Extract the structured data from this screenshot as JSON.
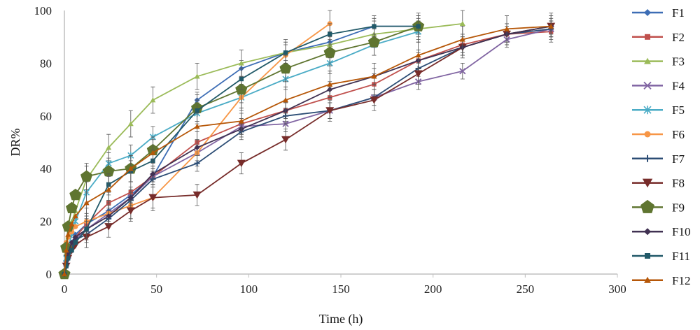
{
  "chart_data": {
    "type": "line",
    "title": "",
    "xlabel": "Time (h)",
    "ylabel": "DR%",
    "xlim": [
      0,
      300
    ],
    "ylim": [
      0,
      100
    ],
    "xticks": [
      "0",
      "50",
      "100",
      "150",
      "200",
      "250",
      "300"
    ],
    "yticks": [
      "0",
      "20",
      "40",
      "60",
      "80",
      "100"
    ],
    "grid": false,
    "legend_position": "right",
    "x": [
      0,
      1,
      2,
      4,
      6,
      12,
      24,
      36,
      48,
      72,
      96,
      120,
      144,
      168,
      192,
      216,
      240,
      264
    ],
    "series": [
      {
        "name": "F1",
        "color": "#3d6db5",
        "marker": "diamond",
        "values": [
          0,
          5,
          8,
          12,
          15,
          19,
          24,
          30,
          37,
          66,
          78,
          84,
          88,
          94,
          94,
          null,
          null,
          null
        ]
      },
      {
        "name": "F2",
        "color": "#c0504d",
        "marker": "square",
        "values": [
          0,
          4,
          7,
          11,
          14,
          19,
          27,
          31,
          37,
          50,
          57,
          62,
          67,
          72,
          81,
          87,
          91,
          92
        ]
      },
      {
        "name": "F3",
        "color": "#9bbb59",
        "marker": "triangle",
        "values": [
          0,
          8,
          14,
          20,
          24,
          36,
          48,
          57,
          66,
          75,
          80,
          84,
          87,
          91,
          93,
          95,
          null,
          null
        ]
      },
      {
        "name": "F4",
        "color": "#8064a2",
        "marker": "x",
        "values": [
          0,
          4,
          7,
          11,
          13,
          17,
          23,
          29,
          37,
          46,
          56,
          57,
          62,
          67,
          73,
          77,
          89,
          93
        ]
      },
      {
        "name": "F5",
        "color": "#4bacc6",
        "marker": "asterisk",
        "values": [
          0,
          6,
          10,
          15,
          20,
          31,
          42,
          45,
          52,
          61,
          67,
          74,
          80,
          87,
          92,
          null,
          null,
          null
        ]
      },
      {
        "name": "F6",
        "color": "#f79646",
        "marker": "circle",
        "values": [
          10,
          12,
          14,
          16,
          18,
          20,
          23,
          26,
          29,
          46,
          67,
          83,
          95,
          null,
          null,
          null,
          null,
          null
        ]
      },
      {
        "name": "F7",
        "color": "#2c4d75",
        "marker": "plus",
        "values": [
          0,
          4,
          7,
          10,
          13,
          15,
          21,
          28,
          36,
          42,
          54,
          60,
          62,
          67,
          78,
          86,
          91,
          93
        ]
      },
      {
        "name": "F8",
        "color": "#772c2a",
        "marker": "inverted-triangle",
        "values": [
          0,
          3,
          6,
          9,
          11,
          14,
          18,
          24,
          29,
          30,
          42,
          51,
          62,
          66,
          76,
          86,
          91,
          94
        ]
      },
      {
        "name": "F9",
        "color": "#5f7530",
        "marker": "pentagon",
        "values": [
          0,
          10,
          18,
          25,
          30,
          37,
          39,
          40,
          47,
          63,
          70,
          78,
          84,
          88,
          94,
          null,
          null,
          null
        ]
      },
      {
        "name": "F10",
        "color": "#403152",
        "marker": "diamond",
        "values": [
          0,
          4,
          8,
          12,
          14,
          17,
          22,
          29,
          38,
          48,
          55,
          62,
          70,
          75,
          81,
          86,
          91,
          94
        ]
      },
      {
        "name": "F11",
        "color": "#215968",
        "marker": "square",
        "values": [
          0,
          3,
          6,
          9,
          12,
          17,
          34,
          39,
          43,
          62,
          74,
          84,
          91,
          94,
          94,
          null,
          null,
          null
        ]
      },
      {
        "name": "F12",
        "color": "#b65708",
        "marker": "triangle",
        "values": [
          0,
          9,
          15,
          19,
          22,
          27,
          32,
          40,
          46,
          56,
          58,
          66,
          72,
          75,
          83,
          89,
          93,
          94
        ]
      }
    ]
  }
}
